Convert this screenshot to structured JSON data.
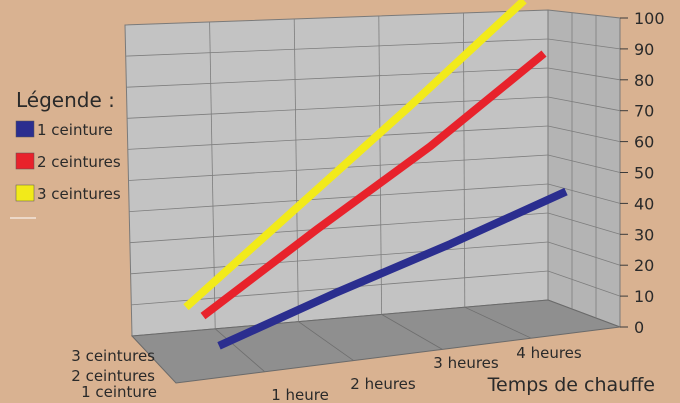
{
  "chart_data": {
    "type": "line",
    "style": "3d",
    "xlabel": "Temps de chauffe",
    "x_categories": [
      "1 heure",
      "2 heures",
      "3 heures",
      "4 heures"
    ],
    "depth_categories": [
      "1 ceinture",
      "2 ceintures",
      "3 ceintures"
    ],
    "yticks": [
      "0",
      "10",
      "20",
      "30",
      "40",
      "50",
      "60",
      "70",
      "80",
      "90",
      "100"
    ],
    "ylim": [
      0,
      100
    ],
    "legend_title": "Légende :",
    "legend_position": "left",
    "grid": true,
    "series": [
      {
        "name": "1 ceinture",
        "color": "#2b2e8f",
        "values": [
          8,
          20,
          31,
          43
        ]
      },
      {
        "name": "2 ceintures",
        "color": "#e8222b",
        "values": [
          13,
          36,
          58,
          83
        ]
      },
      {
        "name": "3 ceintures",
        "color": "#f2ea1a",
        "values": [
          12,
          40,
          68,
          97
        ]
      }
    ]
  }
}
